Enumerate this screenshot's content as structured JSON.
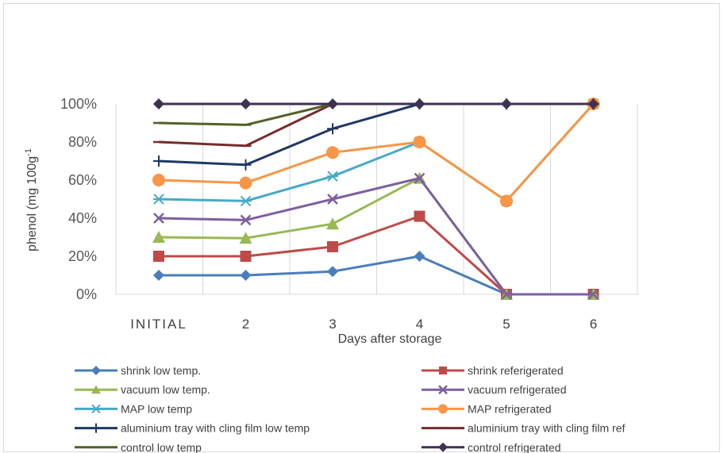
{
  "chart_data": {
    "type": "line",
    "categories": [
      "INITIAL",
      "2",
      "3",
      "4",
      "5",
      "6"
    ],
    "xlabel": "Days after storage",
    "ylabel": "phenol  (mg 100g",
    "ylabel_sup": "-1",
    "ylim": [
      0,
      1
    ],
    "yticks": [
      "0%",
      "20%",
      "40%",
      "60%",
      "80%",
      "100%"
    ],
    "grid": "vertical",
    "legend_position": "bottom",
    "series": [
      {
        "name": "shrink low temp.",
        "color": "#4a7ebb",
        "marker": "diamond",
        "values": [
          0.1,
          0.1,
          0.12,
          0.2,
          0.0,
          0.0
        ]
      },
      {
        "name": "shrink referigerated",
        "color": "#be4b48",
        "marker": "square",
        "values": [
          0.2,
          0.2,
          0.25,
          0.41,
          0.0,
          0.0
        ]
      },
      {
        "name": "vacuum low temp.",
        "color": "#98b954",
        "marker": "triangle",
        "values": [
          0.3,
          0.295,
          0.37,
          0.61,
          0.0,
          0.0
        ]
      },
      {
        "name": "vacuum refrigerated",
        "color": "#7d60a0",
        "marker": "x",
        "values": [
          0.4,
          0.39,
          0.5,
          0.61,
          0.0,
          0.0
        ]
      },
      {
        "name": "MAP low temp",
        "color": "#46aac5",
        "marker": "star",
        "values": [
          0.5,
          0.49,
          0.62,
          0.8,
          0.49,
          1.0
        ]
      },
      {
        "name": "MAP refrigerated",
        "color": "#f79646",
        "marker": "circle",
        "values": [
          0.6,
          0.585,
          0.745,
          0.8,
          0.49,
          1.0
        ]
      },
      {
        "name": "aluminium tray with cling film low temp",
        "color": "#1f3864",
        "marker": "plus",
        "values": [
          0.7,
          0.68,
          0.87,
          1.0,
          1.0,
          1.0
        ]
      },
      {
        "name": "aluminium tray with cling film ref",
        "color": "#772c2a",
        "marker": "dash",
        "values": [
          0.8,
          0.78,
          1.0,
          1.0,
          1.0,
          1.0
        ]
      },
      {
        "name": "control low temp",
        "color": "#4f6228",
        "marker": "dash",
        "values": [
          0.9,
          0.89,
          1.0,
          1.0,
          1.0,
          1.0
        ]
      },
      {
        "name": "control refrigerated",
        "color": "#403152",
        "marker": "diamond",
        "values": [
          1.0,
          1.0,
          1.0,
          1.0,
          1.0,
          1.0
        ]
      }
    ]
  }
}
